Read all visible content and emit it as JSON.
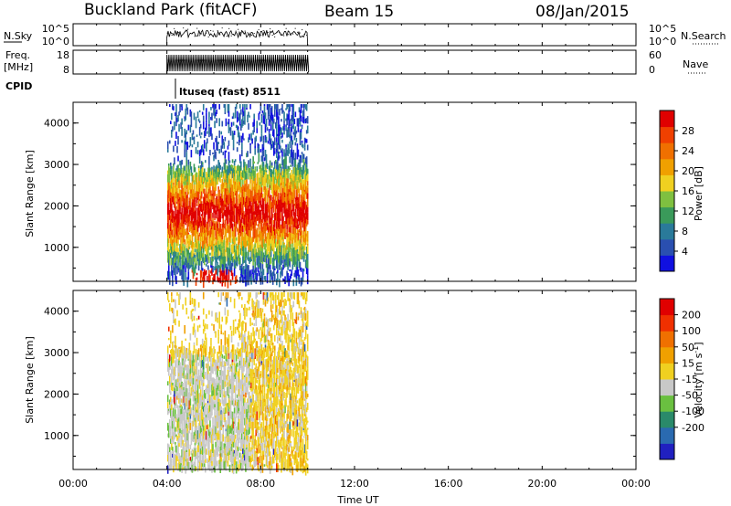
{
  "header": {
    "station": "Buckland Park (fitACF)",
    "beam": "Beam 15",
    "date": "08/Jan/2015"
  },
  "sky_panel": {
    "left_label": "N.Sky",
    "left_ticks": [
      "10^5",
      "10^0"
    ],
    "right_ticks": [
      "10^5",
      "10^0"
    ],
    "right_label": "N.Search"
  },
  "freq_panel": {
    "left_label_1": "Freq.",
    "left_label_2": "[MHz]",
    "left_ticks": [
      "18",
      "8"
    ],
    "right_ticks": [
      "60",
      "0"
    ],
    "right_label": "Nave"
  },
  "cpid": {
    "label": "CPID",
    "value": "ltuseq (fast) 8511"
  },
  "chart_data": [
    {
      "type": "heatmap",
      "name": "power",
      "ylabel": "Slant Range [km]",
      "y_ticks": [
        "1000",
        "2000",
        "3000",
        "4000"
      ],
      "ylim": [
        180,
        4500
      ],
      "xlim_hours": [
        0,
        24
      ],
      "data_time_range_hours": [
        4.0,
        10.0
      ],
      "colorbar": {
        "label": "Power [dB]",
        "ticks": [
          "4",
          "8",
          "12",
          "16",
          "20",
          "24",
          "28"
        ],
        "colors": [
          "#1010e0",
          "#2a4fb0",
          "#2a7a9a",
          "#3a9a5a",
          "#7fc040",
          "#f0d020",
          "#f0a000",
          "#f07000",
          "#f04000",
          "#e00000"
        ]
      }
    },
    {
      "type": "heatmap",
      "name": "velocity",
      "ylabel": "Slant Range [km]",
      "y_ticks": [
        "1000",
        "2000",
        "3000",
        "4000"
      ],
      "ylim": [
        180,
        4500
      ],
      "xlim_hours": [
        0,
        24
      ],
      "data_time_range_hours": [
        4.0,
        10.0
      ],
      "colorbar": {
        "label": "Velocity [m s-1]",
        "ticks": [
          "200",
          "100",
          "50",
          "15",
          "-15",
          "-50",
          "-100",
          "-200"
        ],
        "colors": [
          "#2020c0",
          "#2a6ab0",
          "#2a8a6a",
          "#6ac040",
          "#c8c8c8",
          "#f0d020",
          "#f0a000",
          "#f07000",
          "#f03000",
          "#e00000"
        ]
      }
    }
  ],
  "x_axis": {
    "ticks": [
      "00:00",
      "04:00",
      "08:00",
      "12:00",
      "16:00",
      "20:00",
      "00:00"
    ],
    "label": "Time UT"
  }
}
